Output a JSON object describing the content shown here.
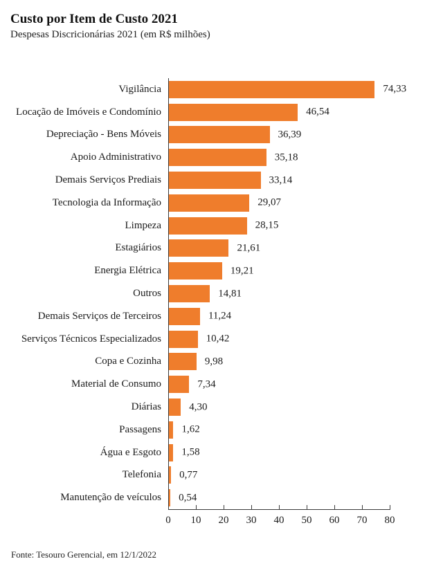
{
  "header": {
    "title": "Custo por Item de Custo 2021",
    "subtitle": "Despesas Discricionárias 2021 (em R$ milhões)"
  },
  "footer": {
    "source": "Fonte: Tesouro Gerencial, em 12/1/2022"
  },
  "colors": {
    "bar": "#EF7D2C",
    "axis": "#3A3A3A",
    "text": "#1A1A1A",
    "background": "#FFFFFF"
  },
  "chart_data": {
    "type": "bar",
    "orientation": "horizontal",
    "title": "Custo por Item de Custo 2021",
    "subtitle": "Despesas Discricionárias 2021 (em R$ milhões)",
    "categories": [
      "Vigilância",
      "Locação de Imóveis e Condomínio",
      "Depreciação - Bens Móveis",
      "Apoio Administrativo",
      "Demais Serviços Prediais",
      "Tecnologia da Informação",
      "Limpeza",
      "Estagiários",
      "Energia Elétrica",
      "Outros",
      "Demais Serviços de Terceiros",
      "Serviços Técnicos Especializados",
      "Copa e Cozinha",
      "Material de Consumo",
      "Diárias",
      "Passagens",
      "Água e Esgoto",
      "Telefonia",
      "Manutenção de veículos"
    ],
    "values": [
      74.33,
      46.54,
      36.39,
      35.18,
      33.14,
      29.07,
      28.15,
      21.61,
      19.21,
      14.81,
      11.24,
      10.42,
      9.98,
      7.34,
      4.3,
      1.62,
      1.58,
      0.77,
      0.54
    ],
    "value_labels": [
      "74,33",
      "46,54",
      "36,39",
      "35,18",
      "33,14",
      "29,07",
      "28,15",
      "21,61",
      "19,21",
      "14,81",
      "11,24",
      "10,42",
      "9,98",
      "7,34",
      "4,30",
      "1,62",
      "1,58",
      "0,77",
      "0,54"
    ],
    "xlabel": "",
    "ylabel": "",
    "xlim": [
      0,
      80
    ],
    "xticks": [
      0,
      10,
      20,
      30,
      40,
      50,
      60,
      70,
      80
    ],
    "grid": false,
    "legend": false,
    "bar_color": "#EF7D2C"
  }
}
